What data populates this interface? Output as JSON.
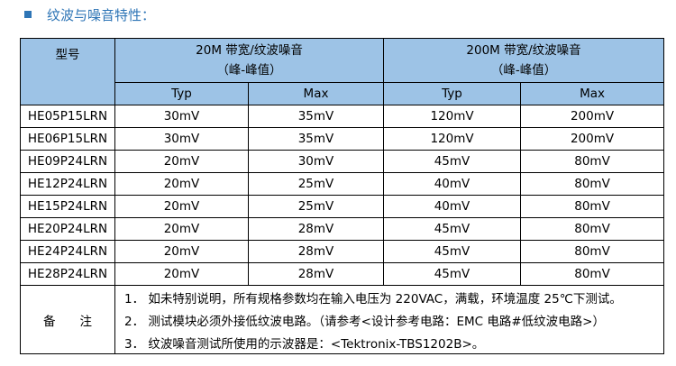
{
  "title": "纹波与噪音特性：",
  "table": {
    "header": {
      "model": "型号",
      "groups": [
        {
          "label": "20M 带宽/纹波噪音",
          "sublabel": "（峰-峰值）"
        },
        {
          "label": "200M 带宽/纹波噪音",
          "sublabel": "（峰-峰值）"
        }
      ],
      "subheaders": [
        "Typ",
        "Max",
        "Typ",
        "Max"
      ]
    },
    "rows": [
      [
        "HE05P15LRN",
        "30mV",
        "35mV",
        "120mV",
        "200mV"
      ],
      [
        "HE06P15LRN",
        "30mV",
        "35mV",
        "120mV",
        "200mV"
      ],
      [
        "HE09P24LRN",
        "20mV",
        "30mV",
        "45mV",
        "80mV"
      ],
      [
        "HE12P24LRN",
        "20mV",
        "25mV",
        "40mV",
        "80mV"
      ],
      [
        "HE15P24LRN",
        "20mV",
        "25mV",
        "40mV",
        "80mV"
      ],
      [
        "HE20P24LRN",
        "20mV",
        "28mV",
        "45mV",
        "80mV"
      ],
      [
        "HE24P24LRN",
        "20mV",
        "28mV",
        "45mV",
        "80mV"
      ],
      [
        "HE28P24LRN",
        "20mV",
        "28mV",
        "45mV",
        "80mV"
      ]
    ],
    "notes": {
      "label": "备　　注",
      "items": [
        "1．  如未特别说明，所有规格参数均在输入电压为 220VAC，满载，环境温度 25℃下测试。",
        "2．  测试模块必须外接低纹波电路。（请参考<设计参考电路：EMC 电路#低纹波电路>）",
        "3．  纹波噪音测试所使用的示波器是：<Tektronix-TBS1202B>。"
      ]
    }
  }
}
